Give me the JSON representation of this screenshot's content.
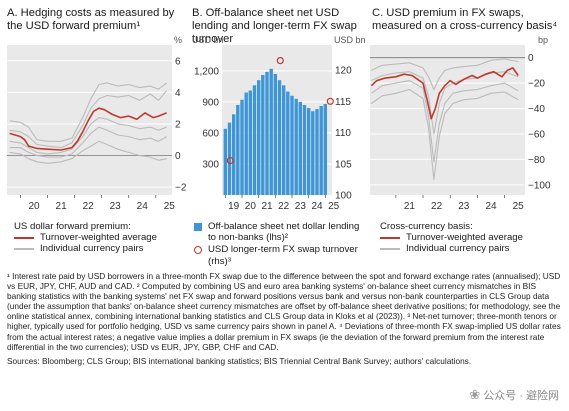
{
  "panels": [
    {
      "title": "A. Hedging costs as measured by the USD forward premium¹",
      "legend_heading": "US dollar forward premium:",
      "legend": [
        "Turnover-weighted average",
        "Individual currency pairs"
      ],
      "unit_right": "%"
    },
    {
      "title": "B. Off-balance sheet net USD lending and longer-term FX swap turnover",
      "unit_left": "USD bn",
      "unit_right": "USD bn",
      "legend": [
        "Off-balance sheet net dollar lending to non-banks (lhs)²",
        "USD longer-term FX swap turnover (rhs)³"
      ]
    },
    {
      "title": "C. USD premium in FX swaps, measured on a cross-currency basis⁴",
      "legend_heading": "Cross-currency basis:",
      "legend": [
        "Turnover-weighted average",
        "Individual currency pairs"
      ],
      "unit_right": "bp"
    }
  ],
  "chart_data": [
    {
      "type": "line",
      "title": "A. Hedging costs as measured by the USD forward premium",
      "xlabel": "",
      "ylabel": "%",
      "x_ticks": [
        "20",
        "21",
        "22",
        "23",
        "24",
        "25"
      ],
      "xlim": [
        2019.5,
        2025.6
      ],
      "y_ticks": [
        -2,
        0,
        2,
        4,
        6
      ],
      "ylim": [
        -2.5,
        7
      ],
      "grid": true,
      "series": [
        {
          "name": "Turnover-weighted average",
          "color": "#c0392b",
          "x": [
            2019.6,
            2019.8,
            2020.0,
            2020.15,
            2020.3,
            2020.6,
            2021.0,
            2021.5,
            2021.9,
            2022.1,
            2022.3,
            2022.5,
            2022.7,
            2022.9,
            2023.1,
            2023.4,
            2023.7,
            2024.0,
            2024.3,
            2024.6,
            2024.9,
            2025.1,
            2025.4
          ],
          "y": [
            1.4,
            1.3,
            1.2,
            1.0,
            0.6,
            0.45,
            0.4,
            0.35,
            0.5,
            0.9,
            1.5,
            2.2,
            2.8,
            3.0,
            2.9,
            2.6,
            2.4,
            2.5,
            2.3,
            2.7,
            2.4,
            2.5,
            2.7
          ]
        },
        {
          "name": "Individual currency pairs",
          "color": "#bbbbbb",
          "x": [
            2019.6,
            2020.0,
            2020.3,
            2020.6,
            2021.0,
            2021.5,
            2021.9,
            2022.3,
            2022.6,
            2022.9,
            2023.2,
            2023.6,
            2024.0,
            2024.4,
            2024.8,
            2025.1,
            2025.4
          ],
          "y": [
            2.2,
            2.1,
            1.8,
            1.0,
            0.9,
            0.9,
            1.1,
            2.4,
            3.6,
            4.5,
            4.6,
            4.4,
            4.5,
            4.3,
            4.4,
            4.2,
            4.6
          ]
        },
        {
          "name": "Individual currency pairs",
          "color": "#bbbbbb",
          "x": [
            2019.6,
            2020.0,
            2020.3,
            2020.6,
            2021.0,
            2021.5,
            2021.9,
            2022.3,
            2022.6,
            2022.9,
            2023.2,
            2023.6,
            2024.0,
            2024.4,
            2024.8,
            2025.1,
            2025.4
          ],
          "y": [
            1.6,
            1.5,
            1.2,
            0.7,
            0.6,
            0.5,
            0.8,
            1.9,
            3.0,
            3.6,
            3.8,
            3.7,
            3.8,
            3.5,
            3.9,
            3.5,
            4.1
          ]
        },
        {
          "name": "Individual currency pairs",
          "color": "#bbbbbb",
          "x": [
            2019.6,
            2020.0,
            2020.3,
            2020.6,
            2021.0,
            2021.5,
            2021.9,
            2022.3,
            2022.6,
            2022.9,
            2023.2,
            2023.6,
            2024.0,
            2024.4,
            2024.8,
            2025.1,
            2025.4
          ],
          "y": [
            0.9,
            0.8,
            0.5,
            0.2,
            0.1,
            0.2,
            0.4,
            1.2,
            2.0,
            2.4,
            2.3,
            2.0,
            1.9,
            1.7,
            1.8,
            1.6,
            1.8
          ]
        },
        {
          "name": "Individual currency pairs",
          "color": "#bbbbbb",
          "x": [
            2019.6,
            2020.0,
            2020.3,
            2020.6,
            2021.0,
            2021.5,
            2021.9,
            2022.3,
            2022.6,
            2022.9,
            2023.2,
            2023.6,
            2024.0,
            2024.4,
            2024.8,
            2025.1,
            2025.4
          ],
          "y": [
            0.5,
            0.5,
            0.2,
            0.0,
            -0.1,
            -0.1,
            0.1,
            0.8,
            1.4,
            1.8,
            1.6,
            1.3,
            1.2,
            1.0,
            1.1,
            0.9,
            1.2
          ]
        },
        {
          "name": "Individual currency pairs",
          "color": "#bbbbbb",
          "x": [
            2019.6,
            2020.0,
            2020.3,
            2020.6,
            2021.0,
            2021.5,
            2021.9,
            2022.3,
            2022.6,
            2022.9,
            2023.2,
            2023.6,
            2024.0,
            2024.4,
            2024.8,
            2025.1,
            2025.4
          ],
          "y": [
            0.2,
            0.1,
            -0.2,
            -0.4,
            -0.5,
            -0.4,
            -0.2,
            0.3,
            0.6,
            0.9,
            0.7,
            0.4,
            0.2,
            0.0,
            -0.1,
            -0.3,
            -0.2
          ]
        }
      ]
    },
    {
      "type": "bar",
      "title": "B. Off-balance sheet net USD lending and longer-term FX swap turnover",
      "y_left_label": "USD bn",
      "y_right_label": "USD bn",
      "x_ticks": [
        "19",
        "20",
        "21",
        "22",
        "23",
        "24",
        "25"
      ],
      "xlim": [
        2018.8,
        2025.4
      ],
      "y_left_ticks": [
        300,
        600,
        900,
        1200
      ],
      "y_left_lim": [
        0,
        1450
      ],
      "y_right_ticks": [
        100,
        105,
        110,
        115,
        120
      ],
      "y_right_lim": [
        100,
        124
      ],
      "bars": {
        "name": "Off-balance sheet net dollar lending to non-banks (lhs)",
        "color": "#3f96d6",
        "x": [
          2019.0,
          2019.25,
          2019.5,
          2019.75,
          2020.0,
          2020.25,
          2020.5,
          2020.75,
          2021.0,
          2021.25,
          2021.5,
          2021.75,
          2022.0,
          2022.25,
          2022.5,
          2022.75,
          2023.0,
          2023.25,
          2023.5,
          2023.75,
          2024.0,
          2024.25,
          2024.5,
          2024.75,
          2025.0
        ],
        "values": [
          640,
          700,
          780,
          870,
          920,
          990,
          1010,
          1060,
          1110,
          1160,
          1190,
          1220,
          1170,
          1110,
          1060,
          1000,
          960,
          930,
          900,
          870,
          840,
          810,
          830,
          860,
          880
        ]
      },
      "points": {
        "name": "USD longer-term FX swap turnover (rhs)",
        "color": "#c0392b",
        "x": [
          2019.3,
          2022.3,
          2025.3
        ],
        "y": [
          105.5,
          121.5,
          115.0
        ]
      }
    },
    {
      "type": "line",
      "title": "C. USD premium in FX swaps, measured on a cross-currency basis",
      "xlabel": "",
      "ylabel": "bp",
      "x_ticks": [
        "21",
        "22",
        "23",
        "24",
        "25"
      ],
      "xlim": [
        2020.05,
        2025.75
      ],
      "y_ticks": [
        -100,
        -80,
        -60,
        -40,
        -20,
        0
      ],
      "ylim": [
        -108,
        10
      ],
      "grid": true,
      "series": [
        {
          "name": "Turnover-weighted average",
          "color": "#c0392b",
          "x": [
            2020.1,
            2020.3,
            2020.6,
            2021.0,
            2021.3,
            2021.6,
            2021.8,
            2022.0,
            2022.15,
            2022.3,
            2022.45,
            2022.6,
            2022.8,
            2023.0,
            2023.2,
            2023.5,
            2023.8,
            2024.0,
            2024.3,
            2024.6,
            2024.9,
            2025.1,
            2025.3,
            2025.5
          ],
          "y": [
            -22,
            -18,
            -16,
            -15,
            -13,
            -14,
            -17,
            -20,
            -33,
            -48,
            -40,
            -28,
            -22,
            -18,
            -21,
            -17,
            -14,
            -16,
            -13,
            -11,
            -15,
            -10,
            -8,
            -14
          ]
        },
        {
          "name": "Individual currency pairs",
          "color": "#bbbbbb",
          "x": [
            2020.1,
            2020.5,
            2021.0,
            2021.5,
            2022.0,
            2022.2,
            2022.4,
            2022.6,
            2022.8,
            2023.1,
            2023.5,
            2024.0,
            2024.5,
            2025.0,
            2025.5
          ],
          "y": [
            -10,
            -6,
            -5,
            -4,
            -8,
            -15,
            -25,
            -16,
            -10,
            -8,
            -7,
            -6,
            -2,
            -1,
            -3
          ]
        },
        {
          "name": "Individual currency pairs",
          "color": "#bbbbbb",
          "x": [
            2020.1,
            2020.5,
            2021.0,
            2021.5,
            2022.0,
            2022.2,
            2022.4,
            2022.6,
            2022.8,
            2023.1,
            2023.5,
            2024.0,
            2024.5,
            2025.0,
            2025.5
          ],
          "y": [
            -18,
            -14,
            -12,
            -11,
            -16,
            -30,
            -60,
            -36,
            -24,
            -20,
            -17,
            -16,
            -12,
            -11,
            -15
          ]
        },
        {
          "name": "Individual currency pairs",
          "color": "#bbbbbb",
          "x": [
            2020.1,
            2020.5,
            2021.0,
            2021.5,
            2022.0,
            2022.2,
            2022.4,
            2022.6,
            2022.8,
            2023.1,
            2023.5,
            2024.0,
            2024.5,
            2025.0,
            2025.5
          ],
          "y": [
            -28,
            -22,
            -20,
            -18,
            -24,
            -46,
            -82,
            -52,
            -36,
            -28,
            -26,
            -25,
            -22,
            -20,
            -26
          ]
        },
        {
          "name": "Individual currency pairs",
          "color": "#bbbbbb",
          "x": [
            2020.1,
            2020.5,
            2021.0,
            2021.5,
            2022.0,
            2022.2,
            2022.4,
            2022.6,
            2022.8,
            2023.1,
            2023.5,
            2024.0,
            2024.5,
            2025.0,
            2025.5
          ],
          "y": [
            -36,
            -30,
            -28,
            -25,
            -32,
            -55,
            -96,
            -62,
            -44,
            -36,
            -33,
            -32,
            -28,
            -27,
            -33
          ]
        }
      ]
    }
  ],
  "notes": [
    "¹ Interest rate paid by USD borrowers in a three-month FX swap due to the difference between the spot and forward exchange rates (annualised); USD vs EUR, JPY, CHF, AUD and CAD.   ² Computed by combining US and euro area banking systems' on-balance sheet currency mismatches in BIS banking statistics with the banking systems' net FX swap and forward positions versus bank and versus non-bank counterparties in CLS Group data (under the assumption that banks' on-balance sheet currency mismatches are offset by off-balance sheet derivative positions; for methodology, see the online statistical annex, combining international banking statistics and CLS Group data in Kloks et al (2023)).   ³ Net-net turnover; three-month tenors or higher, typically used for portfolio hedging, USD vs same currency pairs shown in panel A.   ⁴ Deviations of three-month FX swap-implied US dollar rates from the actual interest rates; a negative value implies a dollar premium in FX swaps (ie the deviation of the forward premium from the interest rate differential in the two currencies); USD vs EUR, JPY, GBP, CHF and CAD."
  ],
  "sources": "Sources: Bloomberg; CLS Group; BIS international banking statistics; BIS Triennial Central Bank Survey; authors' calculations.",
  "watermark": "公众号 · 避险网",
  "watermark_icon": "wechat-icon"
}
